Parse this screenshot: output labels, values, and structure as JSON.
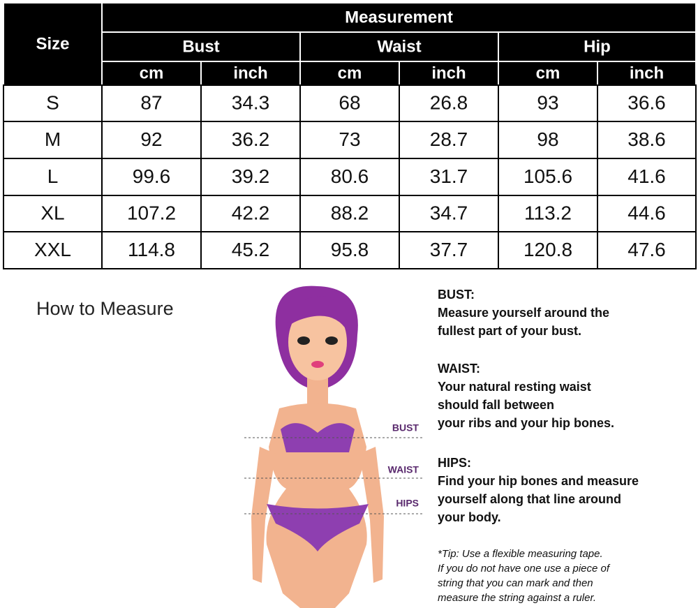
{
  "table": {
    "header": {
      "size": "Size",
      "group": "Measurement",
      "columns": [
        {
          "name": "Bust",
          "units": [
            "cm",
            "inch"
          ]
        },
        {
          "name": "Waist",
          "units": [
            "cm",
            "inch"
          ]
        },
        {
          "name": "Hip",
          "units": [
            "cm",
            "inch"
          ]
        }
      ]
    },
    "rows": [
      [
        "S",
        "87",
        "34.3",
        "68",
        "26.8",
        "93",
        "36.6"
      ],
      [
        "M",
        "92",
        "36.2",
        "73",
        "28.7",
        "98",
        "38.6"
      ],
      [
        "L",
        "99.6",
        "39.2",
        "80.6",
        "31.7",
        "105.6",
        "41.6"
      ],
      [
        "XL",
        "107.2",
        "42.2",
        "88.2",
        "34.7",
        "113.2",
        "44.6"
      ],
      [
        "XXL",
        "114.8",
        "45.2",
        "95.8",
        "37.7",
        "120.8",
        "47.6"
      ]
    ]
  },
  "how_to_measure": {
    "title": "How to Measure",
    "figure_labels": [
      "BUST",
      "WAIST",
      "HIPS"
    ],
    "sections": [
      {
        "heading": "BUST:",
        "lines": [
          "Measure yourself around the",
          "fullest part of your bust."
        ]
      },
      {
        "heading": "WAIST:",
        "lines": [
          "Your natural resting waist",
          "should fall between",
          "your ribs and your hip bones."
        ]
      },
      {
        "heading": "HIPS:",
        "lines": [
          "Find your hip bones and measure",
          "yourself along that line around",
          "your body."
        ]
      }
    ],
    "tip": [
      "*Tip: Use a flexible measuring tape.",
      "If you do not have one use a piece of",
      "string that you can mark and then",
      "measure the string against a ruler."
    ]
  }
}
